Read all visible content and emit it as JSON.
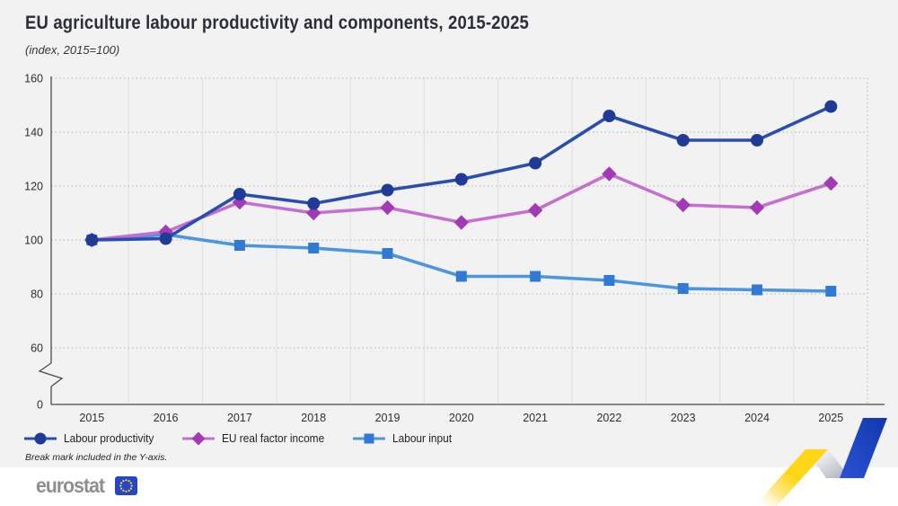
{
  "chart_data": {
    "type": "line",
    "title": "EU agriculture labour productivity and components, 2015-2025",
    "subtitle": "(index, 2015=100)",
    "x": [
      "2015",
      "2016",
      "2017",
      "2018",
      "2019",
      "2020",
      "2021",
      "2022",
      "2023",
      "2024",
      "2025"
    ],
    "series": [
      {
        "name": "Labour productivity",
        "marker": "circle",
        "line_color": "#2B4EAE",
        "marker_color": "#1E3C96",
        "values": [
          100,
          100.5,
          117,
          113.5,
          118.5,
          122.5,
          128.5,
          146,
          137,
          137,
          149.5
        ]
      },
      {
        "name": "EU real factor income",
        "marker": "diamond",
        "line_color": "#C470CE",
        "marker_color": "#A23AB5",
        "values": [
          100,
          103,
          114,
          110,
          112,
          106.5,
          111,
          124.5,
          113,
          112,
          121
        ]
      },
      {
        "name": "Labour input",
        "marker": "square",
        "line_color": "#4E95DF",
        "marker_color": "#3079D6",
        "values": [
          100,
          102,
          98,
          97,
          95,
          86.5,
          86.5,
          85,
          82,
          81.5,
          81
        ]
      }
    ],
    "ylim": [
      0,
      160
    ],
    "yticks": [
      0,
      60,
      80,
      100,
      120,
      140,
      160
    ],
    "axis_break_in_y_axis": true,
    "grid": "vertical solid light, horizontal dotted",
    "legend_position": "bottom-left"
  },
  "footnote": "Break mark included in the Y-axis.",
  "footer": {
    "logo_text": "eurostat"
  },
  "colors": {
    "background": "#f2f2f2",
    "footer_background": "#ffffff",
    "axis": "#4a4a4a",
    "tick_label": "#2e2e2e",
    "gridline_vertical": "#e3e3e3",
    "gridline_dotted": "#b0b0b0",
    "flag_blue": "#2546C8",
    "flag_stars": "#FFD617",
    "ribbon_yellow": "#FFD617",
    "ribbon_silver": "#b4b8c1",
    "ribbon_blue": "#1843C0"
  }
}
